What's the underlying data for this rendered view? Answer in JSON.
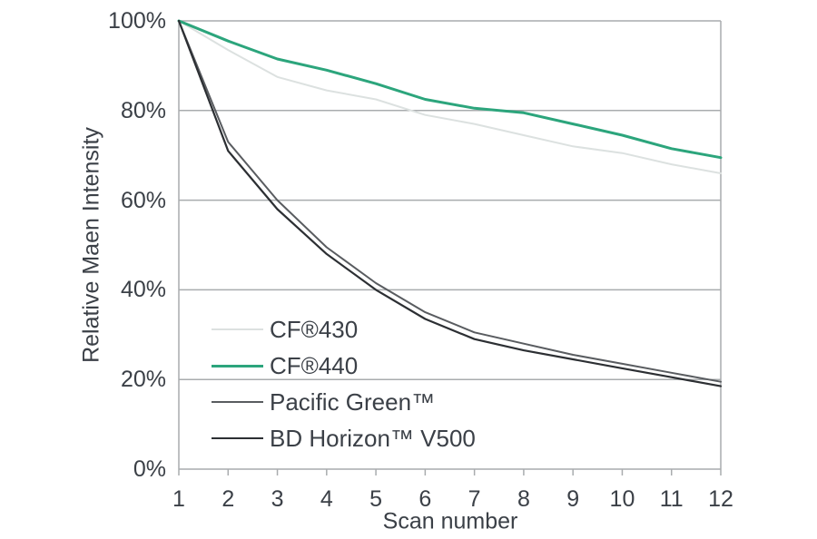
{
  "chart_data": {
    "type": "line",
    "title": "",
    "xlabel": "Scan number",
    "ylabel": "Relative Maen Intensity",
    "x": [
      1,
      2,
      3,
      4,
      5,
      6,
      7,
      8,
      9,
      10,
      11,
      12
    ],
    "x_tick_labels": [
      "1",
      "2",
      "3",
      "4",
      "5",
      "6",
      "7",
      "8",
      "9",
      "10",
      "11",
      "12"
    ],
    "xlim": [
      1,
      12
    ],
    "ylim": [
      0,
      100
    ],
    "y_ticks": [
      0,
      20,
      40,
      60,
      80,
      100
    ],
    "y_tick_labels": [
      "0%",
      "20%",
      "40%",
      "60%",
      "80%",
      "100%"
    ],
    "grid": "horizontal",
    "legend_position": "inside-bottom-left",
    "series": [
      {
        "name": "CF®430",
        "color": "#dce1e0",
        "line_width": 2,
        "values": [
          100,
          93.5,
          87.5,
          84.5,
          82.5,
          79,
          77,
          74.5,
          72,
          70.5,
          68,
          66
        ]
      },
      {
        "name": "CF®440",
        "color": "#2ca57c",
        "line_width": 3,
        "values": [
          100,
          95.5,
          91.5,
          89,
          86,
          82.5,
          80.5,
          79.5,
          77,
          74.5,
          71.5,
          69.5
        ]
      },
      {
        "name": "Pacific Green™",
        "color": "#595c60",
        "line_width": 2,
        "values": [
          100,
          73,
          60,
          49.5,
          41.5,
          35,
          30.5,
          28,
          25.5,
          23.5,
          21.5,
          19.5
        ]
      },
      {
        "name": "BD Horizon™ V500",
        "color": "#2c2f33",
        "line_width": 2.2,
        "values": [
          100,
          71,
          58,
          48,
          40,
          33.5,
          29,
          26.5,
          24.5,
          22.5,
          20.5,
          18.5
        ]
      }
    ],
    "colors": {
      "grid": "#a9acae",
      "axis": "#a9acae",
      "text": "#3b4047",
      "background": "#ffffff"
    }
  }
}
